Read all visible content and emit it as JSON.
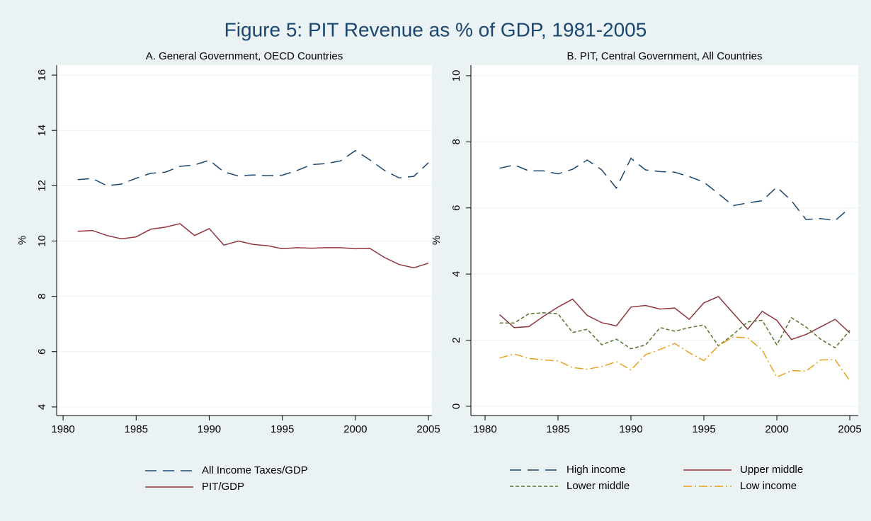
{
  "title": "Figure 5: PIT Revenue as % of GDP, 1981-2005",
  "chart_data": [
    {
      "type": "line",
      "title": "A. General Government, OECD Countries",
      "ylabel": "%",
      "x": [
        1981,
        1982,
        1983,
        1984,
        1985,
        1986,
        1987,
        1988,
        1989,
        1990,
        1991,
        1992,
        1993,
        1994,
        1995,
        1996,
        1997,
        1998,
        1999,
        2000,
        2001,
        2002,
        2003,
        2004,
        2005
      ],
      "xlim": [
        1979.56,
        2005.24
      ],
      "xticks": [
        1980,
        1985,
        1990,
        1995,
        2000,
        2005
      ],
      "ylim": [
        3.69,
        16.36
      ],
      "yticks": [
        4,
        6,
        8,
        10,
        12,
        14,
        16
      ],
      "grid": true,
      "series": [
        {
          "name": "All Income Taxes/GDP",
          "color": "#1a476f",
          "dash": "long-dash",
          "values": [
            12.22,
            12.26,
            12.0,
            12.06,
            12.27,
            12.45,
            12.49,
            12.7,
            12.75,
            12.92,
            12.5,
            12.35,
            12.39,
            12.36,
            12.38,
            12.55,
            12.76,
            12.8,
            12.9,
            13.27,
            12.93,
            12.55,
            12.28,
            12.34,
            12.83
          ]
        },
        {
          "name": "PIT/GDP",
          "color": "#90353b",
          "dash": "solid",
          "values": [
            10.35,
            10.38,
            10.2,
            10.08,
            10.15,
            10.43,
            10.5,
            10.63,
            10.2,
            10.45,
            9.85,
            10.0,
            9.88,
            9.83,
            9.72,
            9.76,
            9.74,
            9.76,
            9.76,
            9.72,
            9.73,
            9.4,
            9.15,
            9.03,
            9.2
          ]
        }
      ]
    },
    {
      "type": "line",
      "title": "B. PIT, Central Government, All Countries",
      "ylabel": "%",
      "x": [
        1981,
        1982,
        1983,
        1984,
        1985,
        1986,
        1987,
        1988,
        1989,
        1990,
        1991,
        1992,
        1993,
        1994,
        1995,
        1996,
        1997,
        1998,
        1999,
        2000,
        2001,
        2002,
        2003,
        2004,
        2005
      ],
      "xlim": [
        1979.03,
        2005.58
      ],
      "xticks": [
        1980,
        1985,
        1990,
        1995,
        2000,
        2005
      ],
      "ylim": [
        -0.28,
        10.32
      ],
      "yticks": [
        0,
        2,
        4,
        6,
        8,
        10
      ],
      "grid": true,
      "series": [
        {
          "name": "High income",
          "color": "#1a476f",
          "dash": "long-dash",
          "values": [
            7.2,
            7.3,
            7.12,
            7.12,
            7.03,
            7.17,
            7.45,
            7.15,
            6.6,
            7.5,
            7.15,
            7.1,
            7.08,
            6.95,
            6.78,
            6.43,
            6.07,
            6.15,
            6.22,
            6.63,
            6.22,
            5.65,
            5.68,
            5.62,
            6.0
          ]
        },
        {
          "name": "Upper middle",
          "color": "#90353b",
          "dash": "solid",
          "values": [
            2.77,
            2.38,
            2.41,
            2.72,
            3.0,
            3.24,
            2.75,
            2.53,
            2.43,
            3.0,
            3.05,
            2.94,
            2.97,
            2.63,
            3.13,
            3.32,
            2.82,
            2.33,
            2.87,
            2.6,
            2.02,
            2.17,
            2.4,
            2.63,
            2.22
          ]
        },
        {
          "name": "Lower middle",
          "color": "#55752f",
          "dash": "short-dash",
          "values": [
            2.52,
            2.52,
            2.8,
            2.83,
            2.8,
            2.23,
            2.33,
            1.86,
            2.03,
            1.74,
            1.85,
            2.38,
            2.27,
            2.38,
            2.46,
            1.83,
            2.17,
            2.55,
            2.6,
            1.86,
            2.68,
            2.4,
            2.03,
            1.77,
            2.3
          ]
        },
        {
          "name": "Low income",
          "color": "#e8a020",
          "dash": "dash-dot",
          "values": [
            1.46,
            1.58,
            1.45,
            1.4,
            1.37,
            1.17,
            1.12,
            1.2,
            1.35,
            1.1,
            1.56,
            1.72,
            1.9,
            1.62,
            1.38,
            1.83,
            2.1,
            2.07,
            1.7,
            0.88,
            1.08,
            1.06,
            1.4,
            1.41,
            0.77
          ]
        }
      ]
    }
  ]
}
